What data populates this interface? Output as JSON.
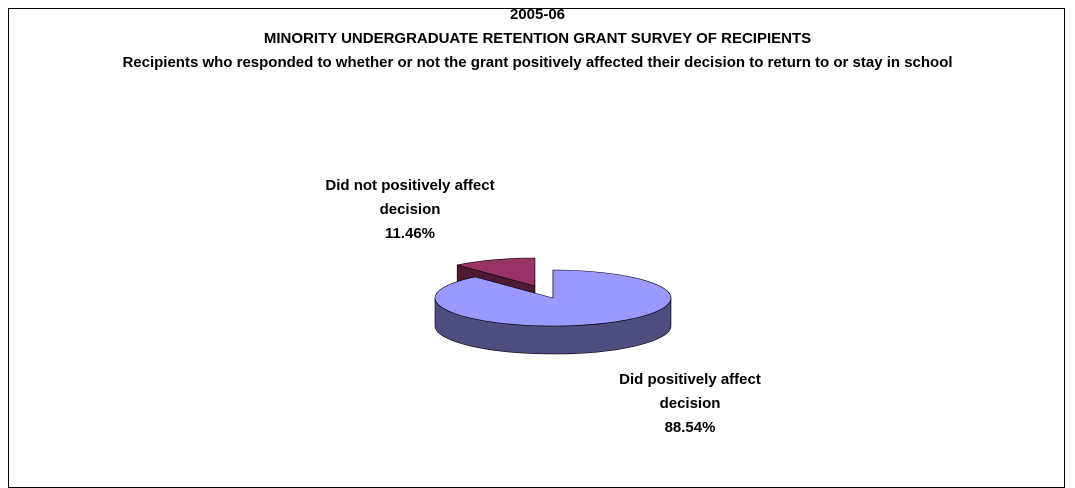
{
  "chart_data": {
    "type": "pie",
    "title": "2005-06",
    "subtitle": "MINORITY UNDERGRADUATE RETENTION GRANT SURVEY  OF RECIPIENTS",
    "description": "Recipients who responded to whether or not the grant positively affected their decision to return to or stay in school",
    "categories": [
      "Did not positively affect decision",
      "Did positively affect decision"
    ],
    "values": [
      11.46,
      88.54
    ],
    "value_labels": [
      "11.46%",
      "88.54%"
    ],
    "colors": [
      "#993366",
      "#9999ff"
    ],
    "side_colors": [
      "#4d1a33",
      "#4d4d80"
    ]
  }
}
